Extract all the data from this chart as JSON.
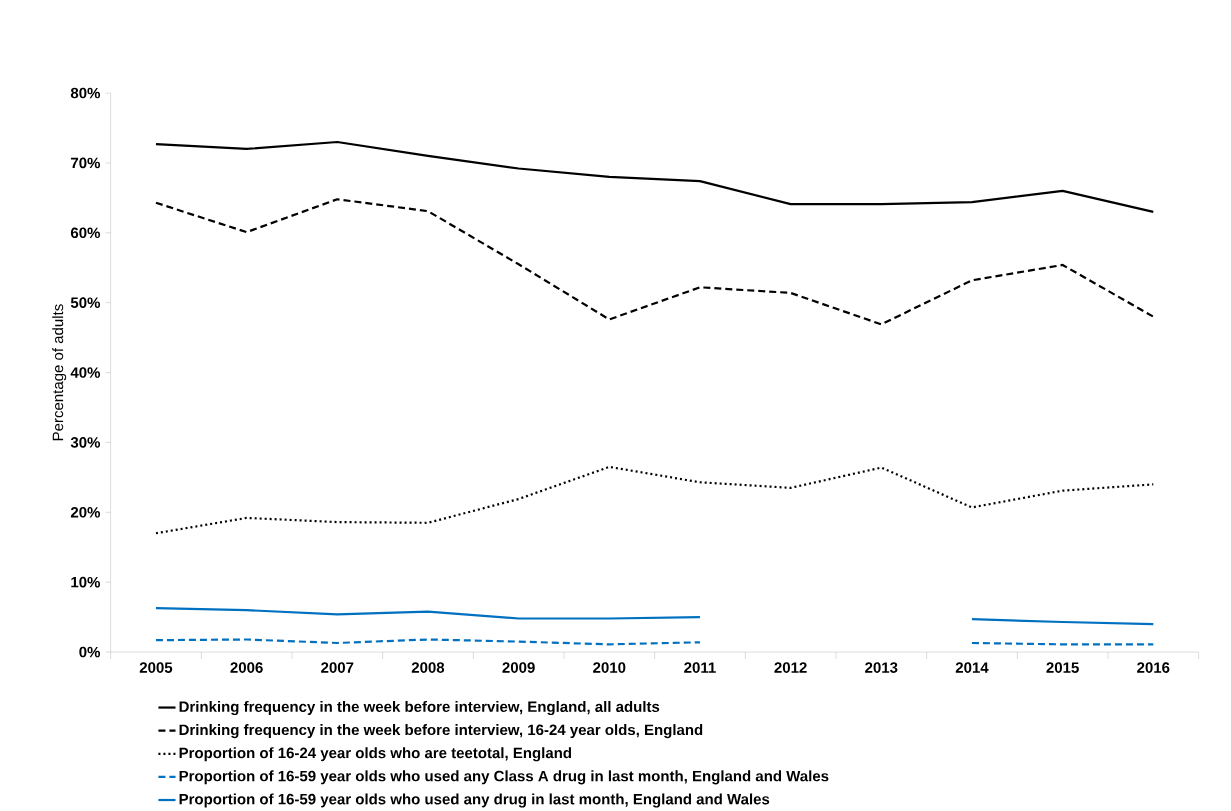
{
  "chart_data": {
    "type": "line",
    "ylabel": "Percentage of adults",
    "categories": [
      "2005",
      "2006",
      "2007",
      "2008",
      "2009",
      "2010",
      "2011",
      "2012",
      "2013",
      "2014",
      "2015",
      "2016"
    ],
    "ylim": [
      0,
      80
    ],
    "yticks": [
      {
        "value": 0,
        "label": "0%"
      },
      {
        "value": 10,
        "label": "10%"
      },
      {
        "value": 20,
        "label": "20%"
      },
      {
        "value": 30,
        "label": "30%"
      },
      {
        "value": 40,
        "label": "40%"
      },
      {
        "value": 50,
        "label": "50%"
      },
      {
        "value": 60,
        "label": "60%"
      },
      {
        "value": 70,
        "label": "70%"
      },
      {
        "value": 80,
        "label": "80%"
      }
    ],
    "grid": false,
    "legend": "bottom",
    "marker": "none",
    "series": [
      {
        "name": "Drinking frequency in the week before interview, England, all adults",
        "color": "#000000",
        "line_style": "solid",
        "values": [
          72.7,
          72.0,
          73.0,
          71.0,
          69.2,
          68.0,
          67.4,
          64.1,
          64.1,
          64.4,
          66.0,
          63.0
        ]
      },
      {
        "name": "Drinking frequency in the week before interview, 16-24 year olds, England",
        "color": "#000000",
        "line_style": "dashed",
        "values": [
          64.3,
          60.1,
          64.8,
          63.1,
          55.5,
          47.6,
          52.2,
          51.4,
          46.9,
          53.2,
          55.4,
          48.0
        ]
      },
      {
        "name": "Proportion of 16-24 year olds who are teetotal, England",
        "color": "#000000",
        "line_style": "dotted",
        "values": [
          17.0,
          19.2,
          18.6,
          18.5,
          21.9,
          26.5,
          24.3,
          23.5,
          26.4,
          20.7,
          23.1,
          24.0
        ]
      },
      {
        "name": "Proportion of 16-59 year olds who used any Class A drug in last month, England and Wales",
        "color": "#0070c0",
        "line_style": "dashed",
        "values": [
          1.7,
          1.8,
          1.3,
          1.8,
          1.5,
          1.1,
          1.4,
          null,
          null,
          1.3,
          1.1,
          1.1
        ]
      },
      {
        "name": "Proportion of 16-59 year olds who used any drug in last month, England and Wales",
        "color": "#0070c0",
        "line_style": "solid",
        "values": [
          6.3,
          6.0,
          5.4,
          5.8,
          4.8,
          4.8,
          5.0,
          null,
          null,
          4.7,
          4.3,
          4.0
        ]
      }
    ]
  }
}
